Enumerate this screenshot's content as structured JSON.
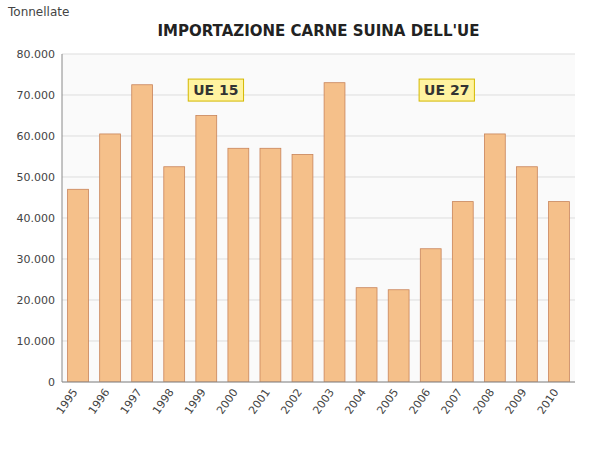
{
  "chart_data": {
    "type": "bar",
    "title": "IMPORTAZIONE CARNE SUINA DELL'UE",
    "ylabel": "Tonnellate",
    "annotations": [
      "UE 15",
      "UE 27"
    ],
    "categories": [
      "1995",
      "1996",
      "1997",
      "1998",
      "1999",
      "2000",
      "2001",
      "2002",
      "2003",
      "2004",
      "2005",
      "2006",
      "2007",
      "2008",
      "2009",
      "2010"
    ],
    "values": [
      47000,
      60500,
      72500,
      52500,
      65000,
      57000,
      57000,
      55500,
      73000,
      23000,
      22500,
      32500,
      44000,
      60500,
      52500,
      44000
    ],
    "color": "#F5C08A",
    "ylim": [
      0,
      80000
    ],
    "yticks": [
      0,
      {
        "value": 10000,
        "label": "10.000"
      },
      {
        "value": 20000,
        "label": "20.000"
      },
      {
        "value": 30000,
        "label": "30.000"
      },
      {
        "value": 40000,
        "label": "40.000"
      },
      {
        "value": 50000,
        "label": "50.000"
      },
      {
        "value": 60000,
        "label": "60.000"
      },
      {
        "value": 70000,
        "label": "70.000"
      },
      {
        "value": 80000,
        "label": "80.000"
      }
    ],
    "grid": true
  }
}
